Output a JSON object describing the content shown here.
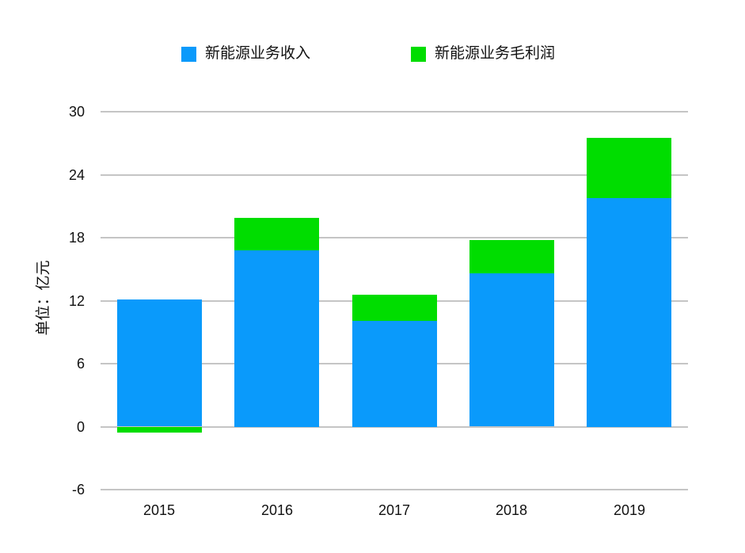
{
  "legend": {
    "items": [
      {
        "label": "新能源业务收入",
        "color": "#0a9afb"
      },
      {
        "label": "新能源业务毛利润",
        "color": "#00dd00"
      }
    ]
  },
  "chart_data": {
    "type": "bar",
    "stacked": true,
    "title": "",
    "categories": [
      "2015",
      "2016",
      "2017",
      "2018",
      "2019"
    ],
    "series": [
      {
        "name": "新能源业务收入",
        "color": "#0a9afb",
        "values": [
          12.1,
          16.8,
          10.1,
          14.6,
          21.8
        ]
      },
      {
        "name": "新能源业务毛利润",
        "color": "#00dd00",
        "values": [
          -0.5,
          3.1,
          2.5,
          3.2,
          5.7
        ]
      }
    ],
    "xlabel": "",
    "ylabel": "单位：亿元",
    "ylim": [
      -6,
      30
    ],
    "yticks": [
      30,
      24,
      18,
      12,
      6,
      0,
      -6
    ],
    "grid": true,
    "gridline_color": "#c5c5c5",
    "background_color": "#ffffff",
    "legend_position": "top"
  }
}
